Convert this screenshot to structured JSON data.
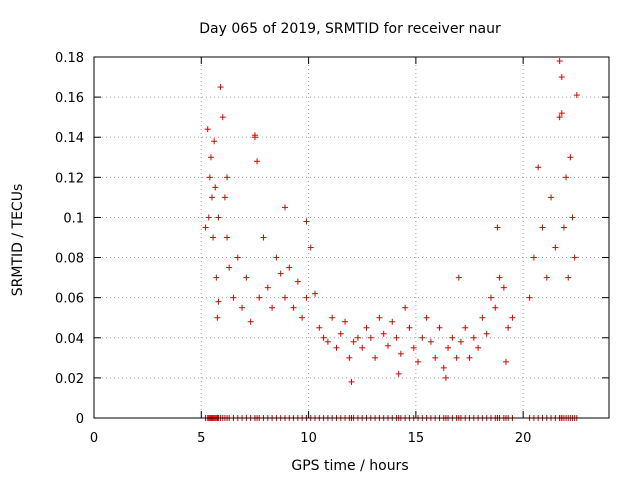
{
  "chart_data": {
    "type": "scatter",
    "title": "Day 065 of 2019, SRMTID for receiver naur",
    "xlabel": "GPS time / hours",
    "ylabel": "SRMTID / TECUs",
    "xlim": [
      0,
      24
    ],
    "ylim": [
      0,
      0.18
    ],
    "xticks": [
      0,
      5,
      10,
      15,
      20
    ],
    "xtick_labels": [
      "0",
      "5",
      "10",
      "15",
      "20"
    ],
    "yticks": [
      0,
      0.02,
      0.04,
      0.06,
      0.08,
      0.1,
      0.12,
      0.14,
      0.16,
      0.18
    ],
    "ytick_labels": [
      "0",
      "0.02",
      "0.04",
      "0.06",
      "0.08",
      "0.1",
      "0.12",
      "0.14",
      "0.16",
      "0.18"
    ],
    "grid": true,
    "marker": "+",
    "color": "#dd0000",
    "series": [
      {
        "name": "SRMTID",
        "x": [
          5.2,
          5.3,
          5.35,
          5.4,
          5.45,
          5.5,
          5.55,
          5.6,
          5.65,
          5.7,
          5.75,
          5.8,
          5.9,
          6.0,
          6.1,
          6.2,
          6.3,
          6.5,
          6.7,
          6.9,
          7.1,
          7.3,
          7.5,
          7.7,
          7.9,
          8.1,
          8.3,
          8.5,
          8.7,
          8.9,
          9.1,
          9.3,
          9.5,
          9.7,
          9.9,
          10.1,
          10.3,
          10.5,
          10.7,
          10.9,
          11.1,
          11.3,
          11.5,
          11.7,
          11.9,
          12.1,
          12.3,
          12.5,
          12.7,
          12.9,
          13.1,
          13.3,
          13.5,
          13.7,
          13.9,
          14.1,
          14.3,
          14.5,
          14.7,
          14.9,
          15.1,
          15.3,
          15.5,
          15.7,
          15.9,
          16.1,
          16.3,
          16.5,
          16.7,
          16.9,
          17.1,
          17.3,
          17.5,
          17.7,
          17.9,
          18.1,
          18.3,
          18.5,
          18.7,
          18.9,
          19.1,
          19.3,
          19.5,
          20.3,
          20.5,
          20.7,
          20.9,
          21.1,
          21.3,
          21.5,
          21.7,
          21.8,
          21.9,
          22.0,
          22.1,
          22.2,
          22.3,
          22.4,
          22.5,
          7.5,
          7.6,
          5.8,
          9.9,
          17.0,
          18.8,
          21.7,
          21.8,
          6.2,
          8.9,
          12.0,
          14.2,
          16.4,
          19.2
        ],
        "y": [
          0.095,
          0.144,
          0.1,
          0.12,
          0.13,
          0.11,
          0.09,
          0.138,
          0.115,
          0.07,
          0.05,
          0.1,
          0.165,
          0.15,
          0.11,
          0.09,
          0.075,
          0.06,
          0.08,
          0.055,
          0.07,
          0.048,
          0.14,
          0.06,
          0.09,
          0.065,
          0.055,
          0.08,
          0.072,
          0.06,
          0.075,
          0.055,
          0.068,
          0.05,
          0.06,
          0.085,
          0.062,
          0.045,
          0.04,
          0.038,
          0.05,
          0.035,
          0.042,
          0.048,
          0.03,
          0.038,
          0.04,
          0.035,
          0.045,
          0.04,
          0.03,
          0.05,
          0.042,
          0.036,
          0.048,
          0.04,
          0.032,
          0.055,
          0.045,
          0.035,
          0.028,
          0.04,
          0.05,
          0.038,
          0.03,
          0.045,
          0.025,
          0.035,
          0.04,
          0.03,
          0.038,
          0.045,
          0.03,
          0.04,
          0.035,
          0.05,
          0.042,
          0.06,
          0.055,
          0.07,
          0.065,
          0.045,
          0.05,
          0.06,
          0.08,
          0.125,
          0.095,
          0.07,
          0.11,
          0.085,
          0.15,
          0.17,
          0.095,
          0.12,
          0.07,
          0.13,
          0.1,
          0.08,
          0.161,
          0.141,
          0.128,
          0.058,
          0.098,
          0.07,
          0.095,
          0.178,
          0.152,
          0.12,
          0.105,
          0.018,
          0.022,
          0.02,
          0.028
        ],
        "rug_y": 0
      }
    ]
  }
}
